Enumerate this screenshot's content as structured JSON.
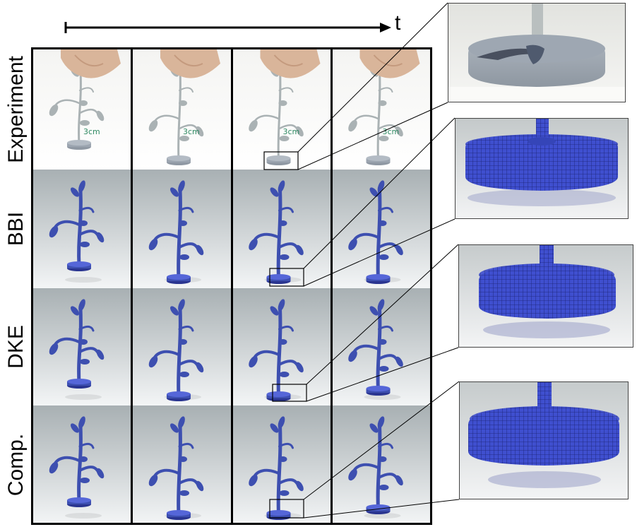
{
  "time_axis": {
    "label": "t"
  },
  "rows": [
    {
      "id": "experiment",
      "label": "Experiment",
      "kind": "photo"
    },
    {
      "id": "bbi",
      "label": "BBI",
      "kind": "sim"
    },
    {
      "id": "dke",
      "label": "DKE",
      "kind": "sim"
    },
    {
      "id": "comp",
      "label": "Comp.",
      "kind": "sim"
    }
  ],
  "experiment_marking": "3cm",
  "colors": {
    "sim_plant": "#3d4fb0",
    "photo_plant": "#aab2b4",
    "frame": "#000000",
    "photo_bg": "#f4f4f2",
    "sim_bg_top": "#a8b0b3",
    "sim_bg_bottom": "#f3f5f6"
  }
}
